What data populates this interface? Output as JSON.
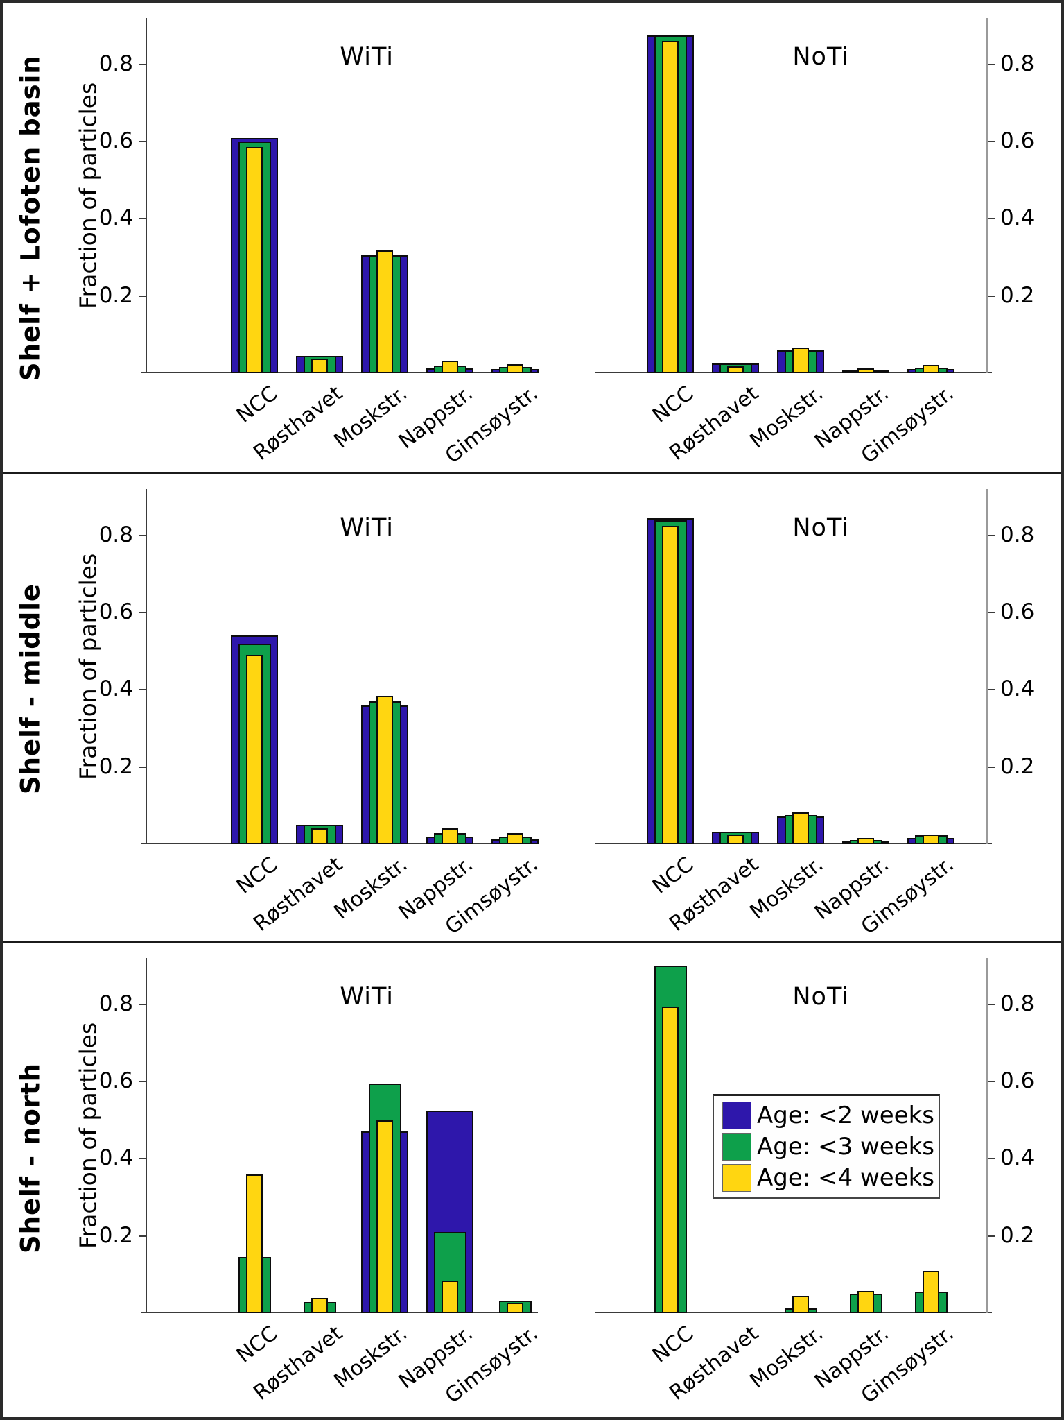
{
  "chart_data": {
    "type": "bar",
    "description": "Nested (overlaid) bar charts of particle destination fractions, 3 regions x 2 tide scenarios",
    "categories": [
      "NCC",
      "Røsthavet",
      "Moskstr.",
      "Nappstr.",
      "Gimsøystr."
    ],
    "series_names": [
      "Age: <2 weeks",
      "Age: <3 weeks",
      "Age: <4 weeks"
    ],
    "ylabel": "Fraction of particles",
    "yticks": [
      0.2,
      0.4,
      0.6,
      0.8
    ],
    "ytick_labels": [
      "0.2",
      "0.4",
      "0.6",
      "0.8"
    ],
    "ylim": [
      0,
      0.92
    ],
    "grid": false,
    "colors": {
      "age_lt2_weeks": "#2e17ab",
      "age_lt3_weeks": "#0ea04b",
      "age_lt4_weeks": "#ffd611",
      "bar_outline": "#0d0d0d",
      "axis": "#3a3a3a",
      "frame": "#1b1b1b"
    },
    "rows": [
      {
        "row_label": "Shelf + Lofoten basin",
        "panels": [
          {
            "title": "WiTi",
            "series": [
              {
                "name": "Age: <2 weeks",
                "values": [
                  0.61,
                  0.045,
                  0.305,
                  0.013,
                  0.01
                ]
              },
              {
                "name": "Age: <3 weeks",
                "values": [
                  0.6,
                  0.045,
                  0.305,
                  0.02,
                  0.016
                ]
              },
              {
                "name": "Age: <4 weeks",
                "values": [
                  0.585,
                  0.038,
                  0.318,
                  0.032,
                  0.023
                ]
              }
            ]
          },
          {
            "title": "NoTi",
            "series": [
              {
                "name": "Age: <2 weeks",
                "values": [
                  0.875,
                  0.025,
                  0.06,
                  0.004,
                  0.01
                ]
              },
              {
                "name": "Age: <3 weeks",
                "values": [
                  0.873,
                  0.025,
                  0.06,
                  0.008,
                  0.015
                ]
              },
              {
                "name": "Age: <4 weeks",
                "values": [
                  0.86,
                  0.018,
                  0.066,
                  0.013,
                  0.021
                ]
              }
            ]
          }
        ]
      },
      {
        "row_label": "Shelf - middle",
        "panels": [
          {
            "title": "WiTi",
            "series": [
              {
                "name": "Age: <2 weeks",
                "values": [
                  0.54,
                  0.05,
                  0.36,
                  0.02,
                  0.012
                ]
              },
              {
                "name": "Age: <3 weeks",
                "values": [
                  0.52,
                  0.05,
                  0.37,
                  0.028,
                  0.02
                ]
              },
              {
                "name": "Age: <4 weeks",
                "values": [
                  0.49,
                  0.042,
                  0.385,
                  0.042,
                  0.028
                ]
              }
            ]
          },
          {
            "title": "NoTi",
            "series": [
              {
                "name": "Age: <2 weeks",
                "values": [
                  0.845,
                  0.033,
                  0.072,
                  0.006,
                  0.016
                ]
              },
              {
                "name": "Age: <3 weeks",
                "values": [
                  0.84,
                  0.033,
                  0.075,
                  0.01,
                  0.024
                ]
              },
              {
                "name": "Age: <4 weeks",
                "values": [
                  0.825,
                  0.026,
                  0.082,
                  0.017,
                  0.026
                ]
              }
            ]
          }
        ]
      },
      {
        "row_label": "Shelf - north",
        "panels": [
          {
            "title": "WiTi",
            "series": [
              {
                "name": "Age: <2 weeks",
                "values": [
                  0,
                  0,
                  0.47,
                  0.525,
                  0
                ]
              },
              {
                "name": "Age: <3 weeks",
                "values": [
                  0.145,
                  0.028,
                  0.595,
                  0.21,
                  0.032
                ]
              },
              {
                "name": "Age: <4 weeks",
                "values": [
                  0.36,
                  0.04,
                  0.5,
                  0.085,
                  0.027
                ]
              }
            ]
          },
          {
            "title": "NoTi",
            "series": [
              {
                "name": "Age: <2 weeks",
                "values": [
                  0,
                  0,
                  0,
                  0,
                  0
                ]
              },
              {
                "name": "Age: <3 weeks",
                "values": [
                  0.9,
                  0,
                  0.012,
                  0.05,
                  0.055
                ]
              },
              {
                "name": "Age: <4 weeks",
                "values": [
                  0.795,
                  0,
                  0.045,
                  0.058,
                  0.11
                ]
              }
            ]
          }
        ]
      }
    ],
    "legend": {
      "location": "bottom-right panel, upper middle",
      "entries": [
        {
          "label": "Age: <2 weeks",
          "color": "#2e17ab"
        },
        {
          "label": "Age: <3 weeks",
          "color": "#0ea04b"
        },
        {
          "label": "Age: <4 weeks",
          "color": "#ffd611"
        }
      ]
    }
  }
}
